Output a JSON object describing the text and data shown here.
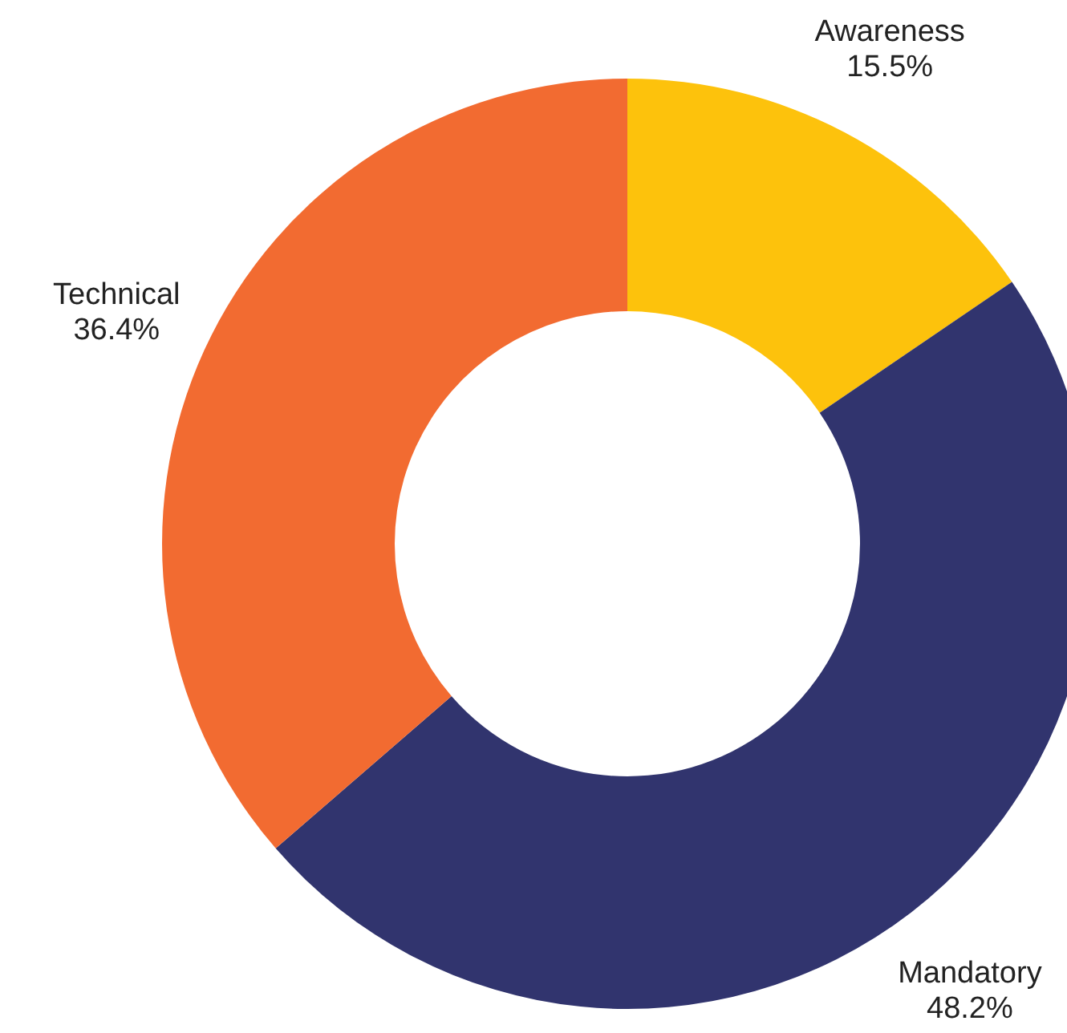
{
  "chart_data": {
    "type": "donut",
    "categories": [
      "Awareness",
      "Mandatory",
      "Technical"
    ],
    "values": [
      15.5,
      48.2,
      36.4
    ],
    "value_labels": [
      "15.5%",
      "48.2%",
      "36.4%"
    ],
    "colors": [
      "#fdc20c",
      "#31346e",
      "#f26b31"
    ]
  }
}
